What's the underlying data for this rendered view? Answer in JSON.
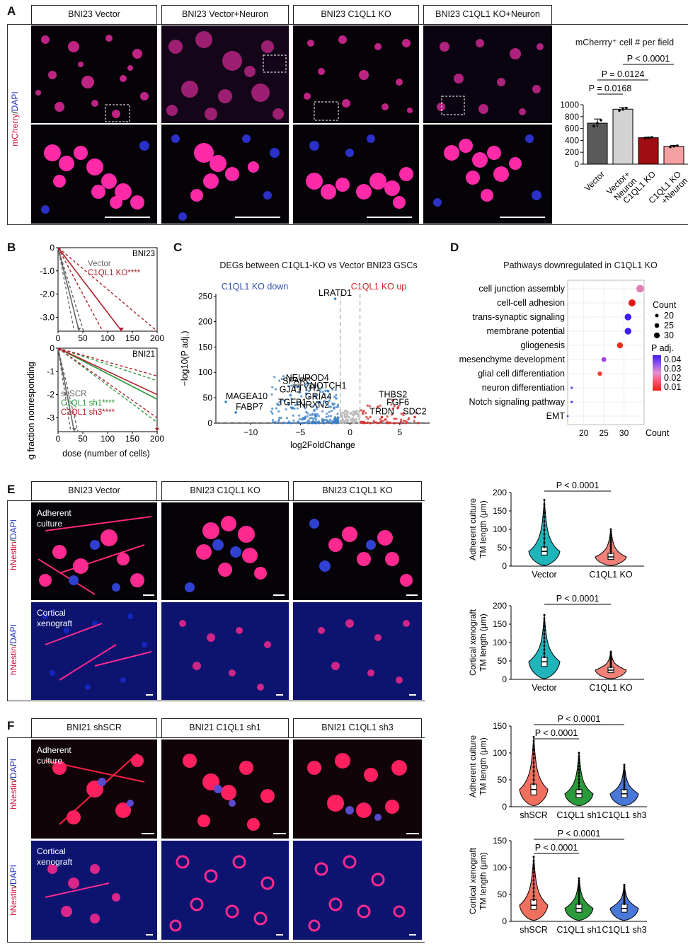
{
  "panels": {
    "A": "A",
    "B": "B",
    "C": "C",
    "D": "D",
    "E": "E",
    "F": "F"
  },
  "panelA": {
    "conditions": [
      "BNI23 Vector",
      "BNI23 Vector+Neuron",
      "BNI23 C1QL1 KO",
      "BNI23 C1QL1 KO+Neuron"
    ],
    "stain_label": {
      "red": "mCherry",
      "sep": "/",
      "blue": "DAPI"
    },
    "chart_title": "mCherrry⁺ cell # per field",
    "chart_data": {
      "type": "bar",
      "categories": [
        "Vector",
        "Vector+\nNeuron",
        "C1QL1 KO",
        "C1QL1 KO\n+Neuron"
      ],
      "category_lines": [
        [
          "Vector"
        ],
        [
          "Vector+",
          "Neuron"
        ],
        [
          "C1QL1 KO"
        ],
        [
          "C1QL1 KO",
          "+Neuron"
        ]
      ],
      "values": [
        690,
        925,
        445,
        300
      ],
      "errors": [
        70,
        30,
        10,
        15
      ],
      "colors": [
        "#5a5a5a",
        "#d3d3d3",
        "#a00d12",
        "#f5a0a0"
      ],
      "ylim": [
        0,
        1000
      ],
      "yticks": [
        0,
        200,
        400,
        600,
        800,
        1000
      ],
      "comparisons": [
        {
          "label": "P = 0.0168",
          "from": 0,
          "to": 1
        },
        {
          "label": "P = 0.0124",
          "from": 0,
          "to": 2
        },
        {
          "label": "P < 0.0001",
          "from": 1,
          "to": 3
        }
      ]
    }
  },
  "panelB": {
    "ylabel": "log fraction nonresponding",
    "xlabel": "dose (number of cells)",
    "top": {
      "title": "BNI23",
      "legend": [
        {
          "text": "Vector",
          "color": "#666666"
        },
        {
          "text": "C1QL1 KO****",
          "color": "#b0202a"
        }
      ],
      "chart_data": {
        "type": "line",
        "xlim": [
          0,
          200
        ],
        "ylim": [
          -3.6,
          0
        ],
        "xticks": [
          0,
          50,
          100,
          150,
          200
        ],
        "yticks": [
          0,
          -1,
          -2,
          -3
        ],
        "ytick_labels": [
          "0",
          "-1.0",
          "-2.0",
          "-3.0"
        ],
        "series": [
          {
            "name": "Vector",
            "slope": -0.085,
            "lo": -0.07,
            "hi": -0.11,
            "color": "#666666"
          },
          {
            "name": "C1QL1 KO",
            "slope": -0.028,
            "lo": -0.018,
            "hi": -0.04,
            "color": "#b0202a"
          }
        ]
      }
    },
    "bottom": {
      "title": "BNI21",
      "legend": [
        {
          "text": "shSCR",
          "color": "#666666"
        },
        {
          "text": "C1QL1 sh1****",
          "color": "#2a9a3a"
        },
        {
          "text": "C1QL1 sh3****",
          "color": "#b0202a"
        }
      ],
      "chart_data": {
        "type": "line",
        "xlim": [
          0,
          200
        ],
        "ylim": [
          -3.6,
          0
        ],
        "xticks": [
          0,
          50,
          100,
          150,
          200
        ],
        "yticks": [
          0,
          -1,
          -2,
          -3
        ],
        "ytick_labels": [
          "0",
          "-1",
          "-2",
          "-3"
        ],
        "series": [
          {
            "name": "shSCR",
            "slope": -0.11,
            "lo": -0.09,
            "hi": -0.14,
            "color": "#666666"
          },
          {
            "name": "C1QL1 sh1",
            "slope": -0.011,
            "lo": -0.007,
            "hi": -0.016,
            "color": "#2a9a3a"
          },
          {
            "name": "C1QL1 sh3",
            "slope": -0.01,
            "lo": -0.006,
            "hi": -0.015,
            "color": "#b0202a"
          }
        ]
      }
    }
  },
  "panelC": {
    "title": "DEGs between C1QL1-KO vs Vector BNI23 GSCs",
    "down_label": "C1QL1 KO down",
    "up_label": "C1QL1 KO up",
    "xlabel": "log2FoldChange",
    "ylabel": "−log10(P adj.)",
    "chart_data": {
      "type": "scatter",
      "xlim": [
        -13.5,
        8
      ],
      "ylim": [
        0,
        255
      ],
      "xticks": [
        -10,
        -5,
        0,
        5
      ],
      "yticks": [
        0,
        50,
        100,
        150,
        200,
        250
      ],
      "genes": [
        {
          "name": "LRATD1",
          "x": -1.5,
          "y": 245
        },
        {
          "name": "NEUROD4",
          "x": -4.3,
          "y": 78
        },
        {
          "name": "SPARC",
          "x": -5.3,
          "y": 72
        },
        {
          "name": "NOTCH1",
          "x": -2.2,
          "y": 63
        },
        {
          "name": "TTYH1",
          "x": -4.4,
          "y": 58
        },
        {
          "name": "GJA1",
          "x": -6.0,
          "y": 55
        },
        {
          "name": "GRIA4",
          "x": -3.2,
          "y": 41
        },
        {
          "name": "MAGEA10",
          "x": -12.5,
          "y": 42
        },
        {
          "name": "TGFB1",
          "x": -5.8,
          "y": 30
        },
        {
          "name": "NRXN2",
          "x": -3.6,
          "y": 25
        },
        {
          "name": "FABP7",
          "x": -11.5,
          "y": 21
        },
        {
          "name": "THBS2",
          "x": 4.3,
          "y": 45
        },
        {
          "name": "FGF6",
          "x": 4.8,
          "y": 30
        },
        {
          "name": "TRDN",
          "x": 3.2,
          "y": 12
        },
        {
          "name": "SDC2",
          "x": 6.5,
          "y": 12
        }
      ]
    }
  },
  "panelD": {
    "title": "Pathways downregulated in C1QL1 KO",
    "count_legend_title": "Count",
    "count_legend": [
      "20",
      "25",
      "30"
    ],
    "padj_title": "P adj.",
    "padj_ticks": [
      "0.04",
      "0.03",
      "0.02",
      "0.01"
    ],
    "xlabel": "Count",
    "chart_data": {
      "type": "scatter",
      "xlim": [
        16,
        35
      ],
      "xticks": [
        20,
        25,
        30
      ],
      "pathways": [
        {
          "name": "cell junction assembly",
          "count": 34,
          "color": "#e080b8"
        },
        {
          "name": "cell-cell adhesion",
          "count": 32,
          "color": "#e41a10"
        },
        {
          "name": "trans-synaptic signaling",
          "count": 31,
          "color": "#3d1df0"
        },
        {
          "name": "membrane potential",
          "count": 31,
          "color": "#3d1df0"
        },
        {
          "name": "gliogenesis",
          "count": 29,
          "color": "#e43020"
        },
        {
          "name": "mesenchyme development",
          "count": 25,
          "color": "#a040e0"
        },
        {
          "name": "glial cell differentiation",
          "count": 24,
          "color": "#f04030"
        },
        {
          "name": "neuron differentiation",
          "count": 17,
          "color": "#5040f0"
        },
        {
          "name": "Notch signaling pathway",
          "count": 17,
          "color": "#5040f0"
        },
        {
          "name": "EMT",
          "count": 16,
          "color": "#6040f0"
        }
      ]
    }
  },
  "panelE": {
    "conditions": [
      "BNI23 Vector",
      "BNI23 C1QL1 KO",
      "BNI23 C1QL1 KO"
    ],
    "row_labels": [
      "Adherent\nculture",
      "Cortical\nxenograft"
    ],
    "row_label_lines": [
      [
        "Adherent",
        "culture"
      ],
      [
        "Cortical",
        "xenograft"
      ]
    ],
    "stain_label": {
      "red": "hNestin",
      "sep": "/",
      "blue": "DAPI"
    },
    "violins": [
      {
        "ylabel": [
          "Adherent culture",
          "TM length (μm)"
        ],
        "pval": "P < 0.0001",
        "chart_data": {
          "type": "violin",
          "categories": [
            "Vector",
            "C1QL1 KO"
          ],
          "medians": [
            40,
            25
          ],
          "q1": [
            30,
            18
          ],
          "q3": [
            52,
            35
          ],
          "max": [
            180,
            100
          ],
          "colors": [
            "#1fb5bb",
            "#f08078"
          ],
          "ylim": [
            0,
            200
          ],
          "yticks": [
            0,
            50,
            100,
            150,
            200
          ]
        }
      },
      {
        "ylabel": [
          "Cortical xenograft",
          "TM length (μm)"
        ],
        "pval": "P < 0.0001",
        "chart_data": {
          "type": "violin",
          "categories": [
            "Vector",
            "C1QL1 KO"
          ],
          "medians": [
            48,
            25
          ],
          "q1": [
            35,
            18
          ],
          "q3": [
            60,
            33
          ],
          "max": [
            175,
            75
          ],
          "colors": [
            "#1fb5bb",
            "#f08078"
          ],
          "ylim": [
            0,
            200
          ],
          "yticks": [
            0,
            50,
            100,
            150,
            200
          ]
        }
      }
    ]
  },
  "panelF": {
    "conditions": [
      "BNI21 shSCR",
      "BNI21 C1QL1 sh1",
      "BNI21 C1QL1 sh3"
    ],
    "row_label_lines": [
      [
        "Adherent",
        "culture"
      ],
      [
        "Cortical",
        "xenograft"
      ]
    ],
    "stain_label": {
      "red": "hNestin",
      "sep": "/",
      "blue": "DAPI"
    },
    "violins": [
      {
        "ylabel": [
          "Adherent culture",
          "TM length (μm)"
        ],
        "pvals": [
          "P < 0.0001",
          "P < 0.0001"
        ],
        "chart_data": {
          "type": "violin",
          "categories": [
            "shSCR",
            "C1QL1 sh1",
            "C1QL1 sh3"
          ],
          "medians": [
            32,
            24,
            24
          ],
          "q1": [
            22,
            17,
            17
          ],
          "q3": [
            42,
            32,
            32
          ],
          "max": [
            130,
            100,
            78
          ],
          "colors": [
            "#f07060",
            "#2a9a3a",
            "#4a78d8"
          ],
          "ylim": [
            0,
            150
          ],
          "yticks": [
            0,
            50,
            100,
            150
          ]
        }
      },
      {
        "ylabel": [
          "Cortical xenograft",
          "TM length (μm)"
        ],
        "pvals": [
          "P < 0.0001",
          "P < 0.0001"
        ],
        "chart_data": {
          "type": "violin",
          "categories": [
            "shSCR",
            "C1QL1 sh1",
            "C1QL1 sh3"
          ],
          "medians": [
            30,
            24,
            24
          ],
          "q1": [
            22,
            17,
            17
          ],
          "q3": [
            40,
            32,
            32
          ],
          "max": [
            120,
            80,
            68
          ],
          "colors": [
            "#f07060",
            "#2a9a3a",
            "#4a78d8"
          ],
          "ylim": [
            0,
            150
          ],
          "yticks": [
            0,
            50,
            100,
            150
          ]
        }
      }
    ]
  }
}
